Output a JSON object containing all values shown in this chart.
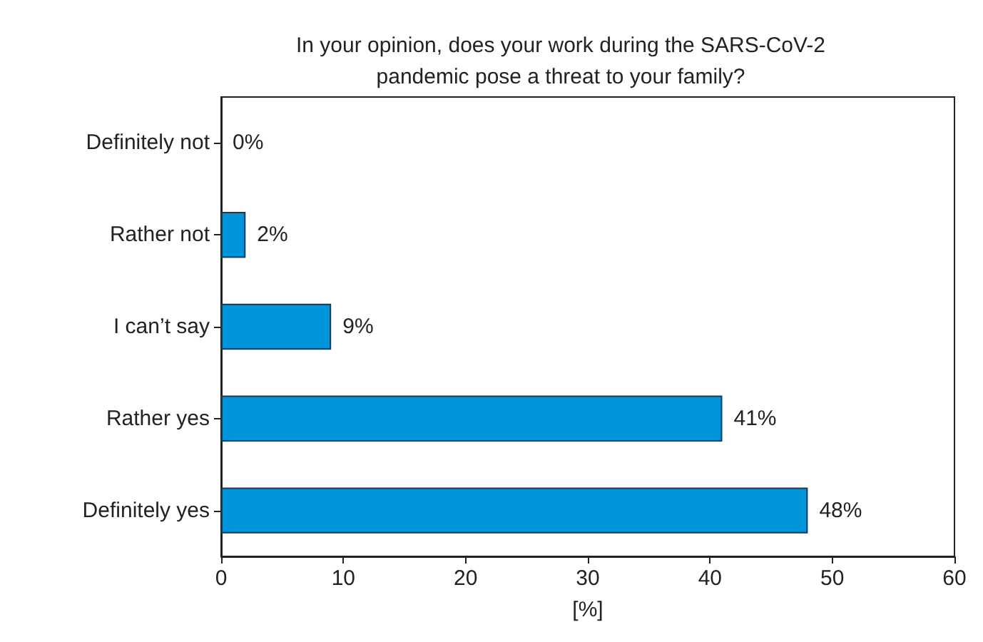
{
  "chart_data": {
    "type": "bar",
    "orientation": "horizontal",
    "title": "In your opinion, does your work during the SARS-CoV-2\npandemic pose a threat to your family?",
    "xlabel": "[%]",
    "categories": [
      "Definitely not",
      "Rather not",
      "I can’t say",
      "Rather yes",
      "Definitely yes"
    ],
    "values": [
      0,
      2,
      9,
      41,
      48
    ],
    "value_labels": [
      "0%",
      "2%",
      "9%",
      "41%",
      "48%"
    ],
    "color": "#0095da",
    "xlim": [
      0,
      60
    ],
    "xticks": [
      0,
      10,
      20,
      30,
      40,
      50,
      60
    ],
    "grid": false
  }
}
